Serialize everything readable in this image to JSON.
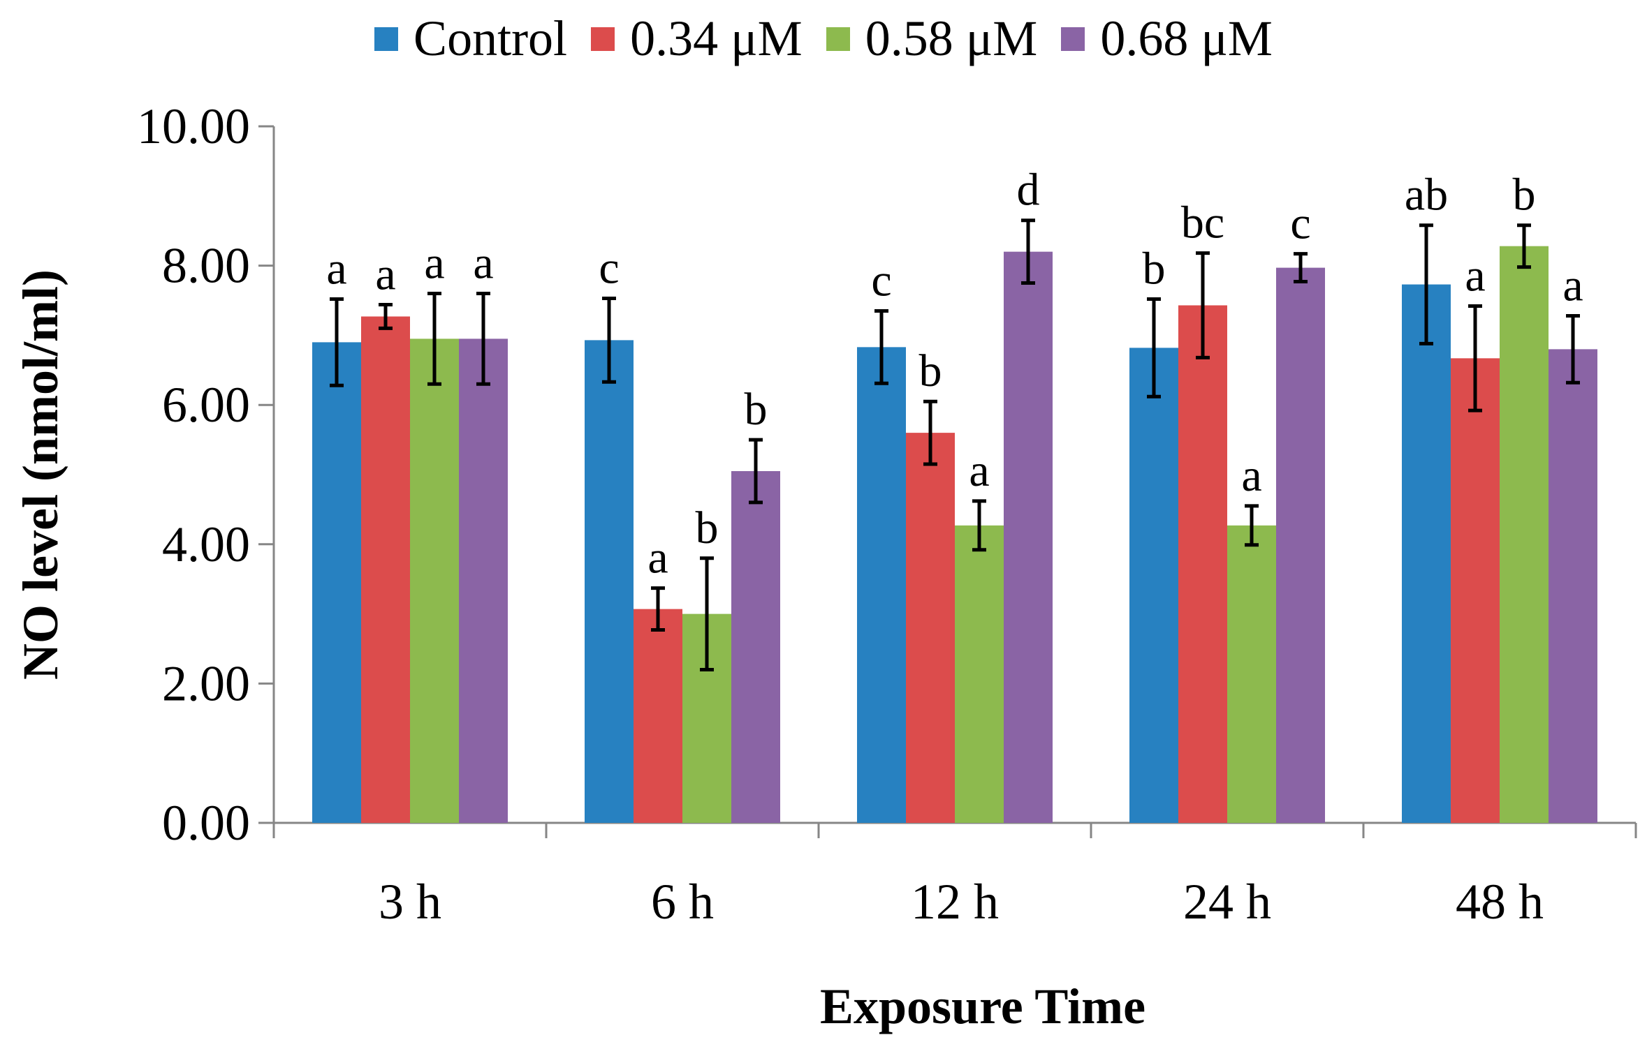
{
  "chart_data": {
    "type": "bar",
    "categories": [
      "3 h",
      "6 h",
      "12 h",
      "24 h",
      "48 h"
    ],
    "series": [
      {
        "name": "Control",
        "color": "#2781C1",
        "values": [
          6.9,
          6.93,
          6.83,
          6.82,
          7.73
        ],
        "errors": [
          0.62,
          0.6,
          0.52,
          0.7,
          0.85
        ],
        "labels": [
          "a",
          "c",
          "c",
          "b",
          "ab"
        ]
      },
      {
        "name": "0.34 μM",
        "color": "#DC4C4C",
        "values": [
          7.27,
          3.07,
          5.6,
          7.43,
          6.67
        ],
        "errors": [
          0.17,
          0.3,
          0.45,
          0.75,
          0.75
        ],
        "labels": [
          "a",
          "a",
          "b",
          "bc",
          "a"
        ]
      },
      {
        "name": "0.58 μM",
        "color": "#8DBA4E",
        "values": [
          6.95,
          3.0,
          4.27,
          4.27,
          8.28
        ],
        "errors": [
          0.65,
          0.8,
          0.35,
          0.28,
          0.3
        ],
        "labels": [
          "a",
          "b",
          "a",
          "a",
          "b"
        ]
      },
      {
        "name": "0.68 μM",
        "color": "#8A64A5",
        "values": [
          6.95,
          5.05,
          8.2,
          7.97,
          6.8
        ],
        "errors": [
          0.65,
          0.45,
          0.45,
          0.2,
          0.48
        ],
        "labels": [
          "a",
          "b",
          "d",
          "c",
          "a"
        ]
      }
    ],
    "yticks": [
      "0.00",
      "2.00",
      "4.00",
      "6.00",
      "8.00",
      "10.00"
    ],
    "ylim": [
      0,
      10
    ],
    "xlabel": "Exposure Time",
    "ylabel": "NO level (nmol/ml)",
    "legend_position": "top-center",
    "grid": false
  }
}
